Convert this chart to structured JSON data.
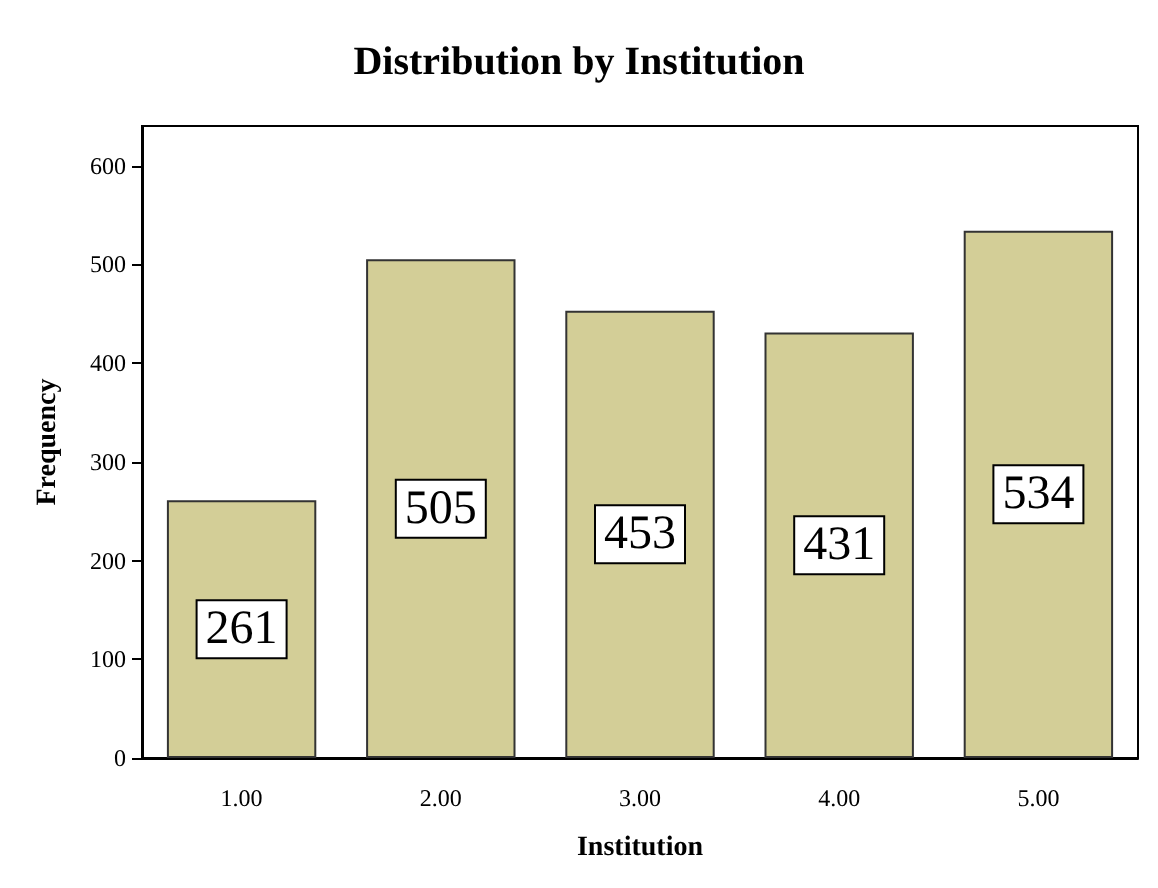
{
  "chart_data": {
    "type": "bar",
    "title": "Distribution by Institution",
    "xlabel": "Institution",
    "ylabel": "Frequency",
    "categories": [
      "1.00",
      "2.00",
      "3.00",
      "4.00",
      "5.00"
    ],
    "values": [
      261,
      505,
      453,
      431,
      534
    ],
    "color": "#d3ce97",
    "ylim": [
      0,
      640
    ],
    "yticks": [
      0,
      100,
      200,
      300,
      400,
      500,
      600
    ],
    "grid": false,
    "data_labels": true
  }
}
